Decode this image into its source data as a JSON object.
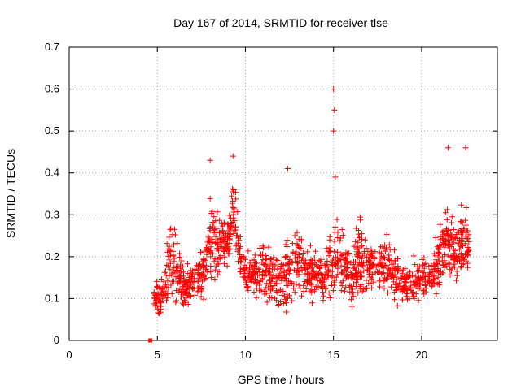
{
  "chart_data": {
    "type": "scatter",
    "title": "Day 167 of 2014, SRMTID for receiver tlse",
    "xlabel": "GPS time / hours",
    "ylabel": "SRMTID / TECUs",
    "xlim": [
      0,
      24.3
    ],
    "ylim": [
      0,
      0.7
    ],
    "xticks": [
      0,
      5,
      10,
      15,
      20
    ],
    "yticks": [
      0,
      0.1,
      0.2,
      0.3,
      0.4,
      0.5,
      0.6,
      0.7
    ],
    "xtick_labels": [
      "0",
      "5",
      "10",
      "15",
      "20"
    ],
    "ytick_labels": [
      "0",
      "0.1",
      "0.2",
      "0.3",
      "0.4",
      "0.5",
      "0.6",
      "0.7"
    ],
    "grid": true,
    "marker": "plus",
    "colors": {
      "series": "#ff0000",
      "marker_outlier": "#ff0000"
    },
    "series": [
      {
        "name": "SRMTID",
        "outlier_points": [
          {
            "x": 4.6,
            "y": 0.0
          },
          {
            "x": 15.0,
            "y": 0.6
          },
          {
            "x": 15.05,
            "y": 0.55
          },
          {
            "x": 15.0,
            "y": 0.5
          },
          {
            "x": 12.4,
            "y": 0.41
          },
          {
            "x": 21.5,
            "y": 0.46
          },
          {
            "x": 22.5,
            "y": 0.46
          },
          {
            "x": 9.3,
            "y": 0.44
          },
          {
            "x": 8.0,
            "y": 0.43
          },
          {
            "x": 15.1,
            "y": 0.39
          }
        ],
        "envelope": [
          {
            "x": 4.8,
            "low": 0.06,
            "high": 0.15
          },
          {
            "x": 5.2,
            "low": 0.05,
            "high": 0.14
          },
          {
            "x": 5.6,
            "low": 0.08,
            "high": 0.28
          },
          {
            "x": 6.0,
            "low": 0.08,
            "high": 0.3
          },
          {
            "x": 6.5,
            "low": 0.07,
            "high": 0.18
          },
          {
            "x": 7.0,
            "low": 0.08,
            "high": 0.2
          },
          {
            "x": 7.5,
            "low": 0.07,
            "high": 0.22
          },
          {
            "x": 8.0,
            "low": 0.12,
            "high": 0.36
          },
          {
            "x": 8.5,
            "low": 0.14,
            "high": 0.32
          },
          {
            "x": 9.0,
            "low": 0.18,
            "high": 0.3
          },
          {
            "x": 9.3,
            "low": 0.2,
            "high": 0.44
          },
          {
            "x": 9.6,
            "low": 0.16,
            "high": 0.3
          },
          {
            "x": 10.0,
            "low": 0.1,
            "high": 0.22
          },
          {
            "x": 10.5,
            "low": 0.08,
            "high": 0.24
          },
          {
            "x": 11.0,
            "low": 0.07,
            "high": 0.26
          },
          {
            "x": 11.5,
            "low": 0.08,
            "high": 0.22
          },
          {
            "x": 12.0,
            "low": 0.06,
            "high": 0.24
          },
          {
            "x": 12.3,
            "low": 0.03,
            "high": 0.28
          },
          {
            "x": 12.7,
            "low": 0.08,
            "high": 0.3
          },
          {
            "x": 13.0,
            "low": 0.09,
            "high": 0.3
          },
          {
            "x": 13.5,
            "low": 0.09,
            "high": 0.24
          },
          {
            "x": 14.0,
            "low": 0.09,
            "high": 0.22
          },
          {
            "x": 14.5,
            "low": 0.08,
            "high": 0.2
          },
          {
            "x": 15.0,
            "low": 0.08,
            "high": 0.32
          },
          {
            "x": 15.5,
            "low": 0.08,
            "high": 0.3
          },
          {
            "x": 16.0,
            "low": 0.07,
            "high": 0.22
          },
          {
            "x": 16.5,
            "low": 0.09,
            "high": 0.32
          },
          {
            "x": 17.0,
            "low": 0.1,
            "high": 0.22
          },
          {
            "x": 17.5,
            "low": 0.12,
            "high": 0.26
          },
          {
            "x": 18.0,
            "low": 0.12,
            "high": 0.26
          },
          {
            "x": 18.5,
            "low": 0.08,
            "high": 0.22
          },
          {
            "x": 19.0,
            "low": 0.08,
            "high": 0.2
          },
          {
            "x": 19.5,
            "low": 0.07,
            "high": 0.2
          },
          {
            "x": 20.0,
            "low": 0.09,
            "high": 0.22
          },
          {
            "x": 20.5,
            "low": 0.1,
            "high": 0.2
          },
          {
            "x": 21.0,
            "low": 0.1,
            "high": 0.3
          },
          {
            "x": 21.5,
            "low": 0.14,
            "high": 0.34
          },
          {
            "x": 22.0,
            "low": 0.11,
            "high": 0.3
          },
          {
            "x": 22.5,
            "low": 0.12,
            "high": 0.36
          },
          {
            "x": 22.7,
            "low": 0.12,
            "high": 0.3
          }
        ]
      }
    ]
  }
}
